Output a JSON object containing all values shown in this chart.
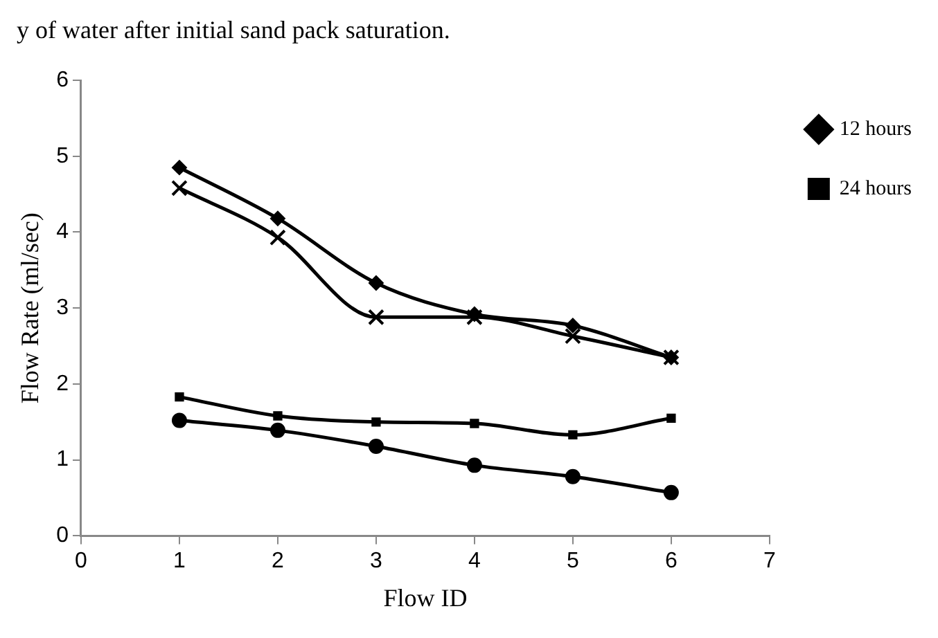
{
  "chart_data": {
    "type": "line",
    "xlabel": "Flow ID",
    "ylabel": "Flow Rate (ml/sec)",
    "annotations": [
      "y of water after initial sand pack saturation."
    ],
    "x": [
      1,
      2,
      3,
      4,
      5,
      6
    ],
    "xlim": [
      0,
      7
    ],
    "xticks": [
      0,
      1,
      2,
      3,
      4,
      5,
      6,
      7
    ],
    "ylim": [
      0,
      6
    ],
    "yticks": [
      0,
      1,
      2,
      3,
      4,
      5,
      6
    ],
    "grid": false,
    "legend": "top right",
    "series": [
      {
        "name": "12 hours",
        "color": "#000000",
        "marker": "diamond",
        "values": [
          4.85,
          4.18,
          3.33,
          2.92,
          2.77,
          2.35
        ]
      },
      {
        "name": "24 hours",
        "color": "#000000",
        "marker": "square",
        "values": [
          1.83,
          1.58,
          1.5,
          1.48,
          1.33,
          1.55
        ]
      },
      {
        "color": "#000000",
        "marker": "cross",
        "values": [
          4.58,
          3.93,
          2.88,
          2.88,
          2.63,
          2.35
        ]
      },
      {
        "color": "#000000",
        "marker": "circle",
        "values": [
          1.52,
          1.39,
          1.18,
          0.93,
          0.78,
          0.57
        ]
      }
    ]
  }
}
